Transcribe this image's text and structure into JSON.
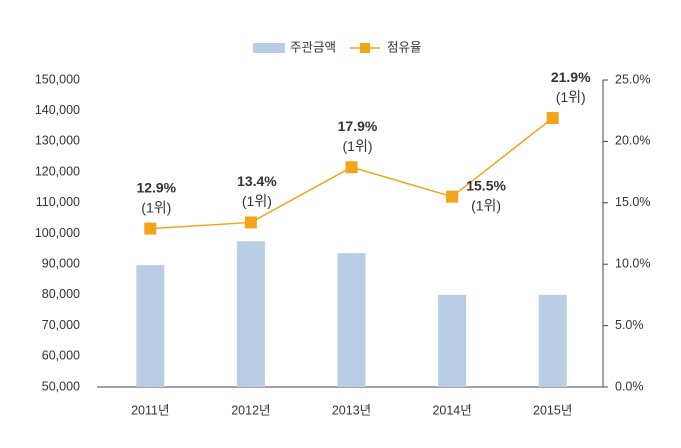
{
  "chart_data": {
    "type": "bar-line",
    "categories": [
      "2011년",
      "2012년",
      "2013년",
      "2014년",
      "2015년"
    ],
    "series": [
      {
        "name": "주관금액",
        "type": "bar",
        "color": "#b9cde5",
        "values": [
          89700,
          97500,
          93600,
          80000,
          80000
        ]
      },
      {
        "name": "점유율",
        "type": "line",
        "axis": "y2",
        "color": "#f5a31a",
        "values": [
          12.9,
          13.4,
          17.9,
          15.5,
          21.9
        ],
        "value_labels": [
          "12.9%",
          "13.4%",
          "17.9%",
          "15.5%",
          "21.9%"
        ],
        "rank_labels": [
          "(1위)",
          "(1위)",
          "(1위)",
          "(1위)",
          "(1위)"
        ]
      }
    ],
    "ylim": [
      50000,
      150000
    ],
    "yticks": [
      {
        "value": 50000,
        "label": "50,000"
      },
      {
        "value": 60000,
        "label": "60,000"
      },
      {
        "value": 70000,
        "label": "70,000"
      },
      {
        "value": 80000,
        "label": "80,000"
      },
      {
        "value": 90000,
        "label": "90,000"
      },
      {
        "value": 100000,
        "label": "100,000"
      },
      {
        "value": 110000,
        "label": "110,000"
      },
      {
        "value": 120000,
        "label": "120,000"
      },
      {
        "value": 130000,
        "label": "130,000"
      },
      {
        "value": 140000,
        "label": "140,000"
      },
      {
        "value": 150000,
        "label": "150,000"
      }
    ],
    "y2lim": [
      0,
      25
    ],
    "y2ticks": [
      {
        "value": 0,
        "label": "0.0%"
      },
      {
        "value": 5,
        "label": "5.0%"
      },
      {
        "value": 10,
        "label": "10.0%"
      },
      {
        "value": 15,
        "label": "15.0%"
      },
      {
        "value": 20,
        "label": "20.0%"
      },
      {
        "value": 25,
        "label": "25.0%"
      }
    ]
  }
}
